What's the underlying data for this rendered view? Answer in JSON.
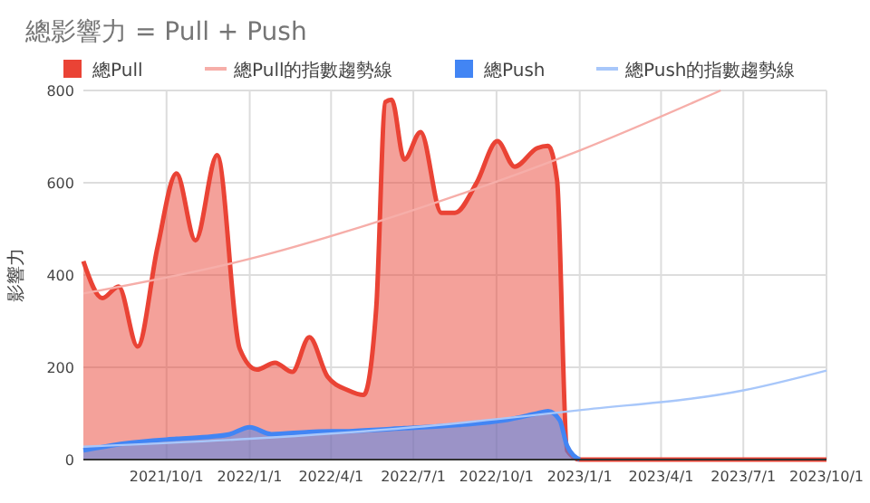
{
  "chart_data": {
    "type": "area",
    "title": "總影響力 = Pull + Push",
    "ylabel": "影響力",
    "xlim": [
      "2021-07-01",
      "2023-10-01"
    ],
    "xticks": [
      {
        "value": "2021-10-01",
        "label": "2021/10/1"
      },
      {
        "value": "2022-01-01",
        "label": "2022/1/1"
      },
      {
        "value": "2022-04-01",
        "label": "2022/4/1"
      },
      {
        "value": "2022-07-01",
        "label": "2022/7/1"
      },
      {
        "value": "2022-10-01",
        "label": "2022/10/1"
      },
      {
        "value": "2023-01-01",
        "label": "2023/1/1"
      },
      {
        "value": "2023-04-01",
        "label": "2023/4/1"
      },
      {
        "value": "2023-07-01",
        "label": "2023/7/1"
      },
      {
        "value": "2023-10-01",
        "label": "2023/10/1"
      }
    ],
    "ylim": [
      0,
      800
    ],
    "yticks": [
      0,
      200,
      400,
      600,
      800
    ],
    "grid": true,
    "legend": "top",
    "series": [
      {
        "name": "總Pull",
        "color": "#ea4335",
        "x": [
          "2021-07-01",
          "2021-07-22",
          "2021-08-09",
          "2021-08-30",
          "2021-09-21",
          "2021-10-12",
          "2021-11-02",
          "2021-11-26",
          "2021-12-21",
          "2022-01-09",
          "2022-01-29",
          "2022-02-17",
          "2022-03-08",
          "2022-03-28",
          "2022-04-20",
          "2022-05-07",
          "2022-05-21",
          "2022-05-31",
          "2022-06-07",
          "2022-06-21",
          "2022-07-09",
          "2022-08-01",
          "2022-08-16",
          "2022-09-09",
          "2022-10-02",
          "2022-10-21",
          "2022-11-15",
          "2022-11-27",
          "2022-12-07",
          "2022-12-18",
          "2023-01-01",
          "2023-10-01"
        ],
        "values": [
          430,
          350,
          375,
          245,
          460,
          620,
          475,
          660,
          240,
          195,
          210,
          190,
          265,
          180,
          150,
          140,
          330,
          775,
          780,
          650,
          710,
          535,
          535,
          600,
          690,
          635,
          675,
          680,
          605,
          20,
          0,
          0
        ]
      },
      {
        "name": "總Pull的指數趨勢線",
        "color": "#f6aea9",
        "type": "line",
        "x": [
          "2021-07-01",
          "2022-01-01",
          "2022-07-12",
          "2023-01-01",
          "2023-06-06"
        ],
        "values": [
          360,
          435,
          548,
          670,
          800
        ]
      },
      {
        "name": "總Push",
        "color": "#4285f4",
        "x": [
          "2021-07-01",
          "2021-08-15",
          "2021-10-12",
          "2021-11-20",
          "2021-12-10",
          "2022-01-01",
          "2022-01-25",
          "2022-03-08",
          "2022-04-25",
          "2022-06-21",
          "2022-08-20",
          "2022-10-10",
          "2022-11-15",
          "2022-11-27",
          "2022-12-10",
          "2022-12-18",
          "2023-01-01"
        ],
        "values": [
          20,
          35,
          45,
          50,
          55,
          70,
          55,
          60,
          62,
          68,
          75,
          85,
          100,
          105,
          85,
          30,
          0
        ]
      },
      {
        "name": "總Push的指數趨勢線",
        "color": "#a8c7fa",
        "type": "line",
        "x": [
          "2021-07-01",
          "2022-01-01",
          "2022-07-01",
          "2023-01-01",
          "2023-07-01",
          "2023-10-01"
        ],
        "values": [
          28,
          45,
          70,
          107,
          150,
          193
        ]
      }
    ]
  }
}
